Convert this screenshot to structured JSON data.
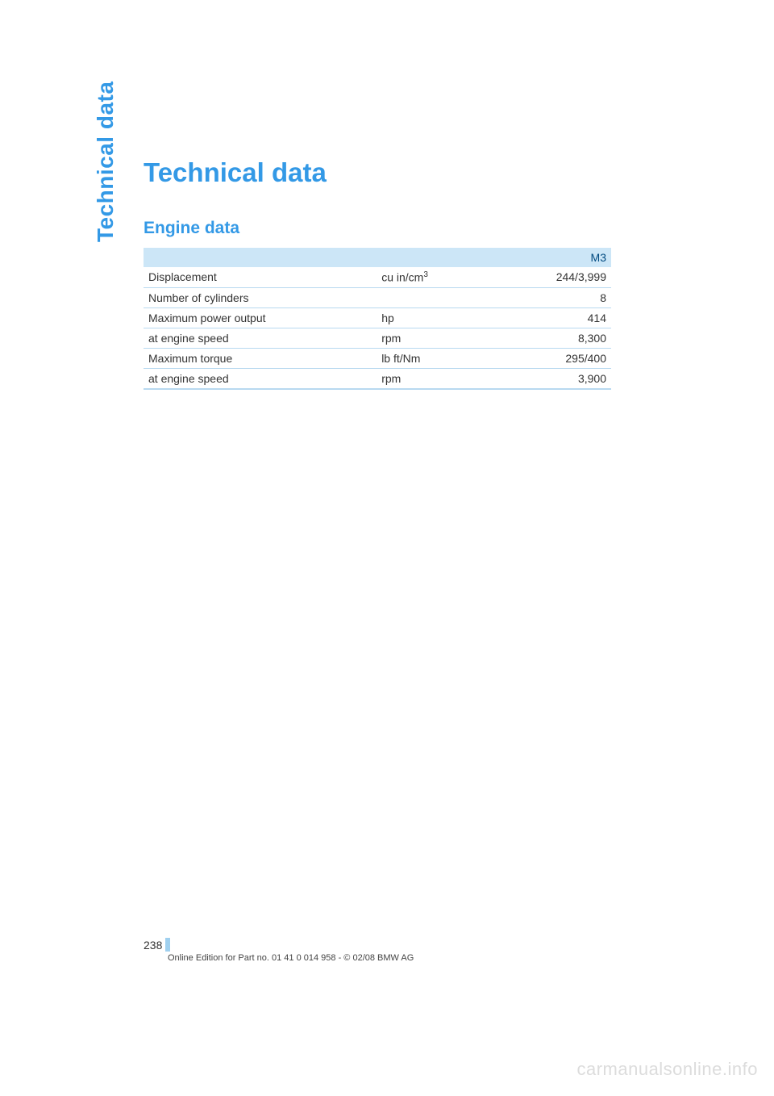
{
  "side_label": "Technical data",
  "page_title": "Technical data",
  "section_title": "Engine data",
  "table": {
    "header_model": "M3",
    "rows": [
      {
        "label": "Displacement",
        "unit_html": "cu in/cm<sup>3</sup>",
        "value": "244/3,999"
      },
      {
        "label": "Number of cylinders",
        "unit_html": "",
        "value": "8"
      },
      {
        "label": "Maximum power output",
        "unit_html": "hp",
        "value": "414"
      },
      {
        "label": "at engine speed",
        "unit_html": "rpm",
        "value": "8,300"
      },
      {
        "label": "Maximum torque",
        "unit_html": "lb ft/Nm",
        "value": "295/400"
      },
      {
        "label": "at engine speed",
        "unit_html": "rpm",
        "value": "3,900"
      }
    ]
  },
  "footer": {
    "page_number": "238",
    "edition_line": "Online Edition for Part no. 01 41 0 014 958 - © 02/08 BMW AG"
  },
  "watermark": "carmanualsonline.info",
  "colors": {
    "accent": "#3399e6",
    "header_bg": "#cce6f7",
    "header_text": "#004a80",
    "row_border": "#b8d9f0",
    "tick": "#9fd0ef",
    "watermark": "#dcdcdc"
  }
}
